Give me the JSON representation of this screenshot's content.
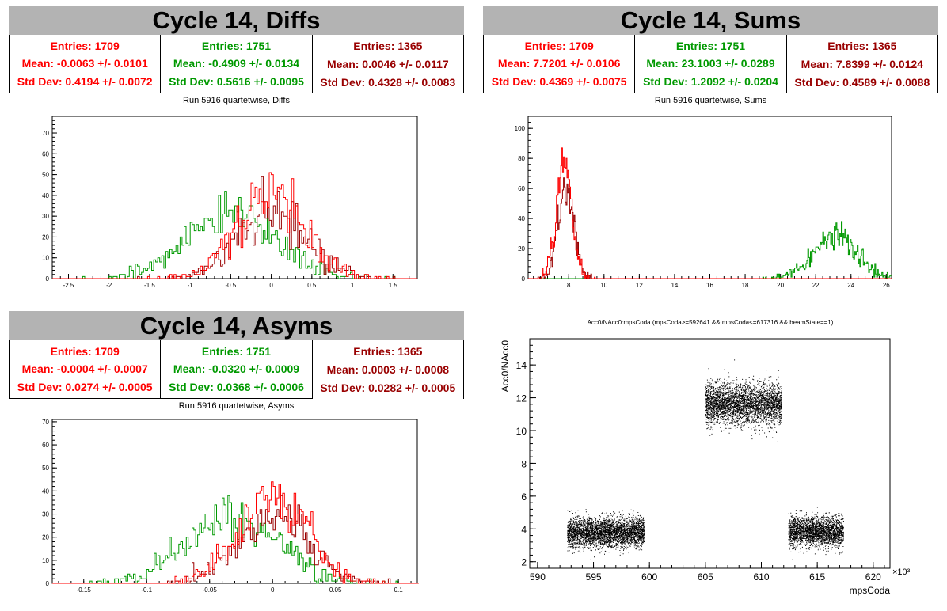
{
  "panels": {
    "diffs": {
      "title": "Cycle 14, Diffs",
      "run_label": "Run 5916 quartetwise, Diffs",
      "stats": [
        {
          "entries": "Entries: 1709",
          "mean": "Mean: -0.0063 +/- 0.0101",
          "std": "Std Dev: 0.4194 +/- 0.0072",
          "color": "#ff0000"
        },
        {
          "entries": "Entries: 1751",
          "mean": "Mean: -0.4909 +/- 0.0134",
          "std": "Std Dev: 0.5616 +/- 0.0095",
          "color": "#009900"
        },
        {
          "entries": "Entries: 1365",
          "mean": "Mean: 0.0046 +/- 0.0117",
          "std": "Std Dev: 0.4328 +/- 0.0083",
          "color": "#990000"
        }
      ]
    },
    "sums": {
      "title": "Cycle 14, Sums",
      "run_label": "Run 5916 quartetwise, Sums",
      "stats": [
        {
          "entries": "Entries: 1709",
          "mean": "Mean: 7.7201 +/- 0.0106",
          "std": "Std Dev: 0.4369 +/- 0.0075",
          "color": "#ff0000"
        },
        {
          "entries": "Entries: 1751",
          "mean": "Mean: 23.1003 +/- 0.0289",
          "std": "Std Dev: 1.2092 +/- 0.0204",
          "color": "#009900"
        },
        {
          "entries": "Entries: 1365",
          "mean": "Mean: 7.8399 +/- 0.0124",
          "std": "Std Dev: 0.4589 +/- 0.0088",
          "color": "#990000"
        }
      ]
    },
    "asyms": {
      "title": "Cycle 14, Asyms",
      "run_label": "Run 5916 quartetwise, Asyms",
      "stats": [
        {
          "entries": "Entries: 1709",
          "mean": "Mean: -0.0004 +/- 0.0007",
          "std": "Std Dev: 0.0274 +/- 0.0005",
          "color": "#ff0000"
        },
        {
          "entries": "Entries: 1751",
          "mean": "Mean: -0.0320 +/- 0.0009",
          "std": "Std Dev: 0.0368 +/- 0.0006",
          "color": "#009900"
        },
        {
          "entries": "Entries: 1365",
          "mean": "Mean: 0.0003 +/- 0.0008",
          "std": "Std Dev: 0.0282 +/- 0.0005",
          "color": "#990000"
        }
      ]
    }
  },
  "chart_data": [
    {
      "id": "diffs",
      "type": "histogram",
      "title": "",
      "xlim": [
        -2.7,
        1.8
      ],
      "ylim": [
        0,
        78
      ],
      "xticks": [
        -2.5,
        -2,
        -1.5,
        -1,
        -0.5,
        0,
        0.5,
        1,
        1.5
      ],
      "xtick_labels": [
        "-2.5",
        "-2",
        "-1.5",
        "-1",
        "-0.5",
        "0",
        "0.5",
        "1",
        "1.5"
      ],
      "yticks": [
        0,
        10,
        20,
        30,
        40,
        50,
        60,
        70
      ],
      "ytick_labels": [
        "0",
        "10",
        "20",
        "30",
        "40",
        "50",
        "60",
        "70"
      ],
      "bin_width": 0.025,
      "series": [
        {
          "color": "#009900",
          "mean": -0.4909,
          "std": 0.5616,
          "entries": 1751
        },
        {
          "color": "#990000",
          "mean": 0.0046,
          "std": 0.4328,
          "entries": 1365
        },
        {
          "color": "#ff0000",
          "mean": -0.0063,
          "std": 0.4194,
          "entries": 1709
        }
      ]
    },
    {
      "id": "sums",
      "type": "histogram",
      "title": "",
      "xlim": [
        5.7,
        26.3
      ],
      "ylim": [
        0,
        108
      ],
      "xticks": [
        8,
        10,
        12,
        14,
        16,
        18,
        20,
        22,
        24,
        26
      ],
      "xtick_labels": [
        "8",
        "10",
        "12",
        "14",
        "16",
        "18",
        "20",
        "22",
        "24",
        "26"
      ],
      "yticks": [
        0,
        20,
        40,
        60,
        80,
        100
      ],
      "ytick_labels": [
        "0",
        "20",
        "40",
        "60",
        "80",
        "100"
      ],
      "bin_width": 0.05,
      "series": [
        {
          "color": "#009900",
          "mean": 23.1003,
          "std": 1.2092,
          "entries": 1751
        },
        {
          "color": "#990000",
          "mean": 7.8399,
          "std": 0.4589,
          "entries": 1365
        },
        {
          "color": "#ff0000",
          "mean": 7.7201,
          "std": 0.4369,
          "entries": 1709
        }
      ]
    },
    {
      "id": "asyms",
      "type": "histogram",
      "title": "",
      "xlim": [
        -0.175,
        0.115
      ],
      "ylim": [
        0,
        71
      ],
      "xticks": [
        -0.15,
        -0.1,
        -0.05,
        0,
        0.05,
        0.1
      ],
      "xtick_labels": [
        "-0.15",
        "-0.1",
        "-0.05",
        "0",
        "0.05",
        "0.1"
      ],
      "yticks": [
        0,
        10,
        20,
        30,
        40,
        50,
        60,
        70
      ],
      "ytick_labels": [
        "0",
        "10",
        "20",
        "30",
        "40",
        "50",
        "60",
        "70"
      ],
      "bin_width": 0.0015,
      "series": [
        {
          "color": "#009900",
          "mean": -0.032,
          "std": 0.0368,
          "entries": 1751
        },
        {
          "color": "#990000",
          "mean": 0.0003,
          "std": 0.0282,
          "entries": 1365
        },
        {
          "color": "#ff0000",
          "mean": -0.0004,
          "std": 0.0274,
          "entries": 1709
        }
      ]
    },
    {
      "id": "scatter",
      "type": "scatter",
      "title": "Acc0/NAcc0:mpsCoda (mpsCoda>=592641 && mpsCoda<=617316 && beamState==1)",
      "xlabel": "mpsCoda",
      "ylabel": "Acc0/NAcc0",
      "x_exponent_label": "×10³",
      "xlim": [
        589.3,
        621.5
      ],
      "ylim": [
        1.6,
        15.6
      ],
      "xticks": [
        590,
        595,
        600,
        605,
        610,
        615,
        620
      ],
      "xtick_labels": [
        "590",
        "595",
        "600",
        "605",
        "610",
        "615",
        "620"
      ],
      "yticks": [
        2,
        4,
        6,
        8,
        10,
        12,
        14
      ],
      "ytick_labels": [
        "2",
        "4",
        "6",
        "8",
        "10",
        "12",
        "14"
      ],
      "color": "#000000",
      "clusters": [
        {
          "x_range": [
            592.64,
            599.5
          ],
          "y_center": 3.8,
          "y_spread": 0.45
        },
        {
          "x_range": [
            605.0,
            611.8
          ],
          "y_center": 11.6,
          "y_spread": 0.65
        },
        {
          "x_range": [
            612.4,
            617.32
          ],
          "y_center": 3.85,
          "y_spread": 0.45
        }
      ]
    }
  ]
}
